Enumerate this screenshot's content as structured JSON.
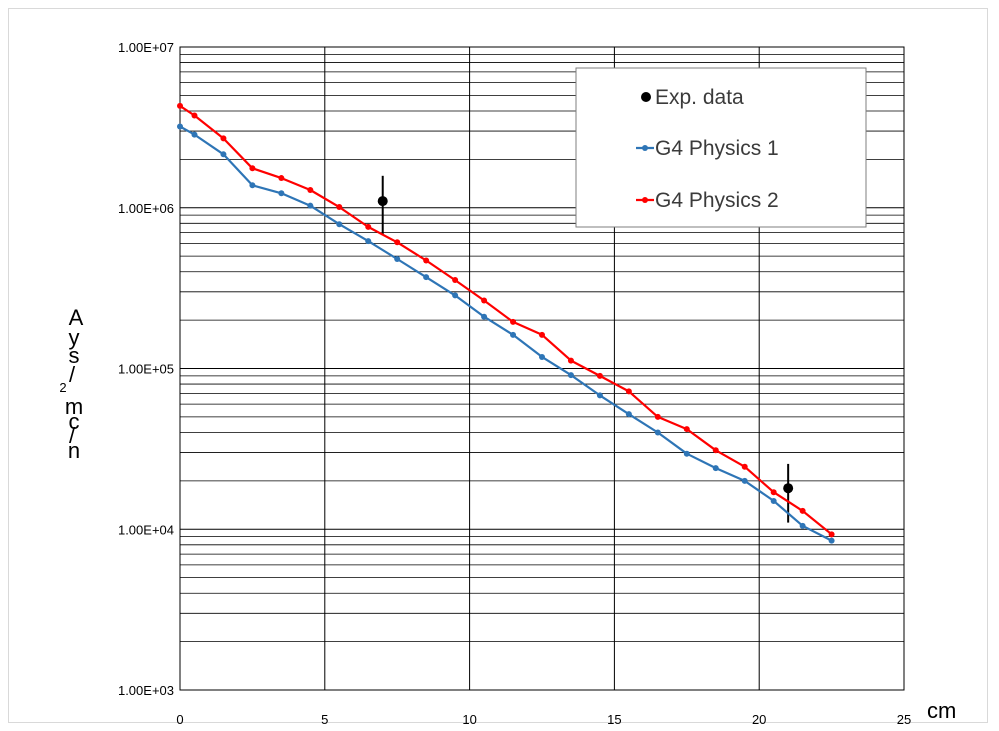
{
  "chart_data": {
    "type": "line",
    "title": "",
    "xlabel": "cm",
    "ylabel_stacked": [
      "A",
      "y",
      "s",
      "/",
      "m",
      "c",
      "/",
      "n"
    ],
    "ylabel_superscript": "2",
    "xlim": [
      0,
      25
    ],
    "ylim": [
      1000,
      10000000
    ],
    "yscale": "log",
    "x_ticks": [
      0,
      5,
      10,
      15,
      20,
      25
    ],
    "x_tick_labels": [
      "0",
      "5",
      "10",
      "15",
      "20",
      "25"
    ],
    "y_ticks": [
      1000,
      10000,
      100000,
      1000000,
      10000000
    ],
    "y_tick_labels": [
      "1.00E+03",
      "1.00E+04",
      "1.00E+05",
      "1.00E+06",
      "1.00E+07"
    ],
    "grid": true,
    "legend_position": "top-right",
    "series": [
      {
        "name": "Exp. data",
        "kind": "points-with-errorbars",
        "color": "#000000",
        "points": [
          {
            "x": 7.0,
            "y": 1100000,
            "ylow": 680000,
            "yhigh": 1580000
          },
          {
            "x": 21.0,
            "y": 18000,
            "ylow": 11000,
            "yhigh": 25500
          }
        ]
      },
      {
        "name": "G4 Physics 1",
        "kind": "line",
        "color": "#2e75b6",
        "x": [
          0,
          0.5,
          1.5,
          2.5,
          3.5,
          4.5,
          5.5,
          6.5,
          7.5,
          8.5,
          9.5,
          10.5,
          11.5,
          12.5,
          13.5,
          14.5,
          15.5,
          16.5,
          17.5,
          18.5,
          19.5,
          20.5,
          21.5,
          22.5
        ],
        "y": [
          3200000,
          2850000,
          2150000,
          1380000,
          1230000,
          1030000,
          790000,
          620000,
          480000,
          370000,
          285000,
          210000,
          162000,
          118000,
          91000,
          68000,
          52000,
          40000,
          29500,
          24000,
          20000,
          15000,
          10500,
          8500
        ]
      },
      {
        "name": "G4 Physics 2",
        "kind": "line",
        "color": "#ff0000",
        "x": [
          0,
          0.5,
          1.5,
          2.5,
          3.5,
          4.5,
          5.5,
          6.5,
          7.5,
          8.5,
          9.5,
          10.5,
          11.5,
          12.5,
          13.5,
          14.5,
          15.5,
          16.5,
          17.5,
          18.5,
          19.5,
          20.5,
          21.5,
          22.5
        ],
        "y": [
          4300000,
          3750000,
          2700000,
          1760000,
          1530000,
          1290000,
          1010000,
          760000,
          610000,
          470000,
          355000,
          265000,
          195000,
          162000,
          112000,
          90000,
          72000,
          50000,
          42000,
          31000,
          24500,
          17000,
          13000,
          9300
        ]
      }
    ]
  }
}
